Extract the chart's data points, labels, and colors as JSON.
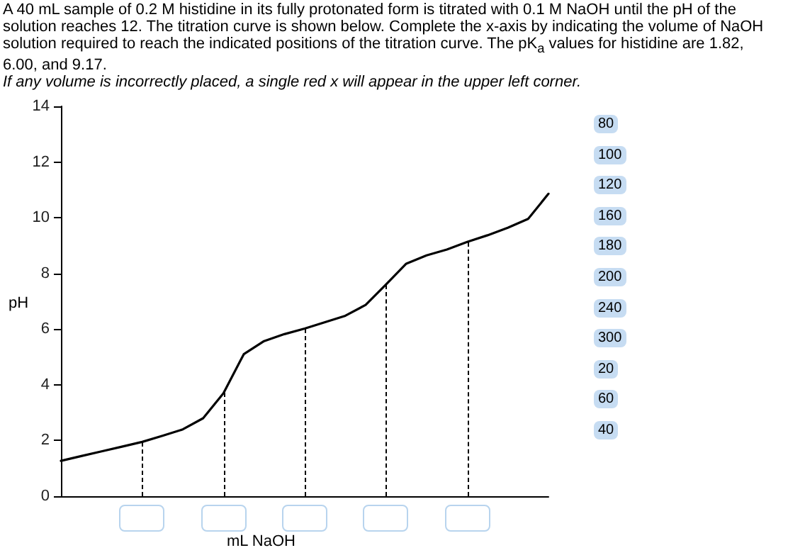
{
  "chart_data": {
    "type": "line",
    "title": "A 40 mL sample of 0.2 M histidine in its fully protonated form is titrated with 0.1 M NaOH until the pH of the solution reaches 12. The titration curve is shown below. Complete the x-axis by indicating the volume of NaOH solution required to reach the indicated positions of the titration curve. The pK$_{a}$ values for histidine are 1.82, 6.00, and 9.17.",
    "subtitle": "If any volume is incorrectly placed, a single red x will appear in the upper left corner.",
    "xlabel": "mL NaOH",
    "ylabel": "pH",
    "categories": [
      null,
      null,
      null,
      null,
      null,
      null,
      null,
      null,
      null,
      null,
      null,
      null,
      null,
      null,
      null,
      null,
      null,
      null,
      null,
      null,
      null,
      null,
      null,
      null,
      null
    ],
    "values": [
      1.27,
      1.44,
      1.61,
      1.78,
      1.95,
      2.17,
      2.4,
      2.8,
      3.7,
      5.1,
      5.57,
      5.82,
      6.02,
      6.25,
      6.48,
      6.87,
      7.6,
      8.35,
      8.65,
      8.86,
      9.13,
      9.37,
      9.64,
      9.96,
      10.86
    ],
    "color": "#000000",
    "ylim": [
      0,
      14
    ],
    "yticks": [
      0,
      2,
      4,
      6,
      8,
      10,
      12,
      14
    ],
    "annotations": [
      "80",
      "100",
      "120",
      "160",
      "180",
      "200",
      "240",
      "300",
      "20",
      "60",
      "40"
    ],
    "grid": false,
    "marker": "none",
    "line_style": "solid"
  }
}
